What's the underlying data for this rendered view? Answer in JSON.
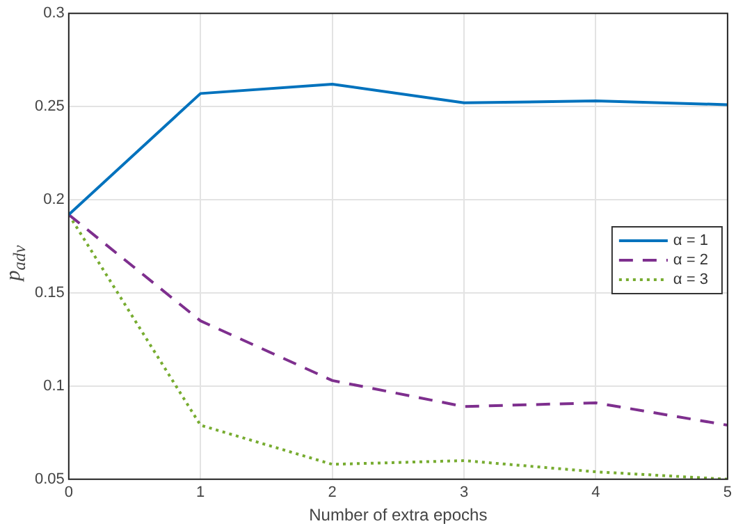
{
  "chart_data": {
    "type": "line",
    "xlabel": "Number of extra epochs",
    "ylabel": "p$_{adv}$",
    "x": [
      0,
      1,
      2,
      3,
      4,
      5
    ],
    "series": [
      {
        "name": "α = 1",
        "color": "#0072bd",
        "line_style": "solid",
        "values": [
          0.192,
          0.257,
          0.262,
          0.252,
          0.253,
          0.251
        ]
      },
      {
        "name": "α = 2",
        "color": "#7e2f8e",
        "line_style": "dashed",
        "values": [
          0.192,
          0.135,
          0.103,
          0.089,
          0.091,
          0.079
        ]
      },
      {
        "name": "α = 3",
        "color": "#77ac30",
        "line_style": "dotted",
        "values": [
          0.192,
          0.079,
          0.058,
          0.06,
          0.054,
          0.05
        ]
      }
    ],
    "xlim": [
      0,
      5
    ],
    "xticks": [
      0,
      1,
      2,
      3,
      4,
      5
    ],
    "ylim": [
      0.05,
      0.3
    ],
    "yticks": [
      0.05,
      0.1,
      0.15,
      0.2,
      0.25,
      0.3
    ],
    "grid": true,
    "legend": "right",
    "marker": "none"
  }
}
